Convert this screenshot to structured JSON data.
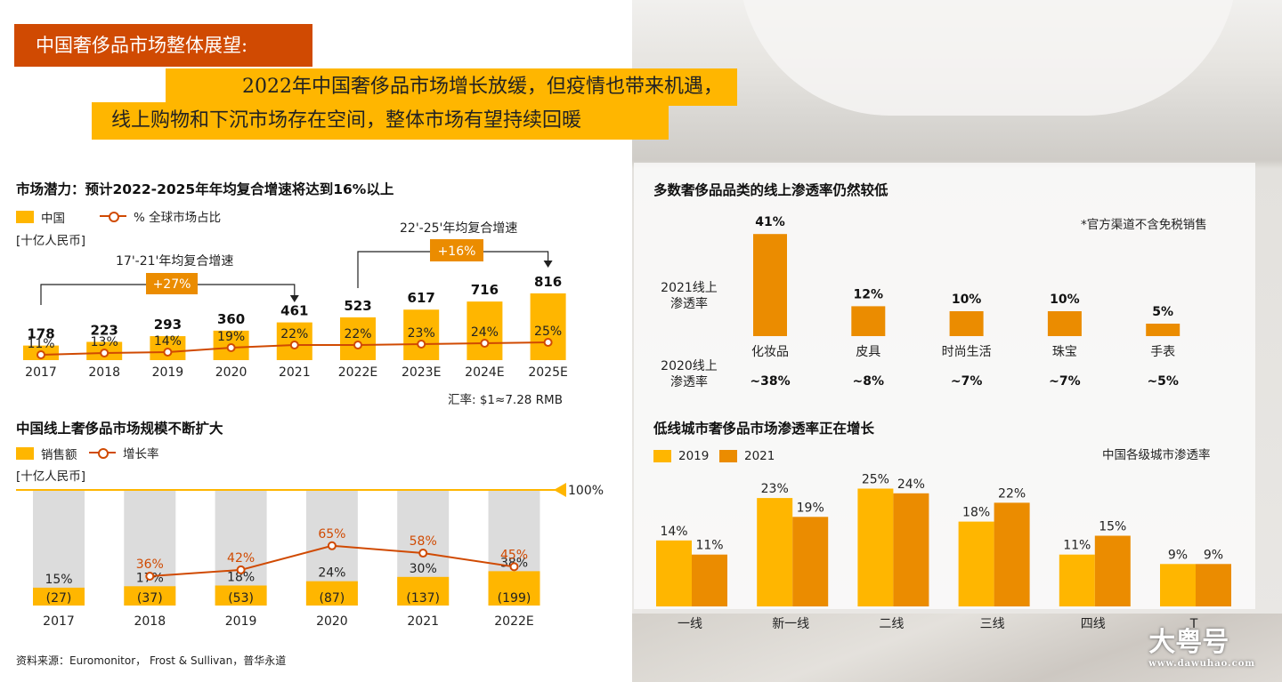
{
  "header": {
    "tag": "中国奢侈品市场整体展望:",
    "headline_line1": "2022年中国奢侈品市场增长放缓，但疫情也带来机遇，",
    "headline_line2": "线上购物和下沉市场存在空间，整体市场有望持续回暖"
  },
  "colors": {
    "orange": "#d04a02",
    "yellow": "#ffb600",
    "amber": "#eb8c00",
    "grey": "#dcdcdc"
  },
  "chart1": {
    "title": "市场潜力：预计2022-2025年年均复合增速将达到16%以上",
    "legend_bar": "中国",
    "legend_line": "% 全球市场占比",
    "unit": "[十亿人民币]",
    "cagr1_label": "17'-21'年均复合增速",
    "cagr1_value": "+27%",
    "cagr2_label": "22'-25'年均复合增速",
    "cagr2_value": "+16%",
    "fx_note": "汇率: $1≈7.28 RMB"
  },
  "chart2": {
    "title": "中国线上奢侈品市场规模不断扩大",
    "legend_bar": "销售额",
    "legend_line": "增长率",
    "unit": "[十亿人民币]",
    "ref_label": "100%"
  },
  "chart3": {
    "title": "多数奢侈品品类的线上渗透率仍然较低",
    "note": "*官方渠道不含免税销售",
    "row_label_2021": "2021线上\n渗透率",
    "row_label_2020": "2020线上\n渗透率"
  },
  "chart4": {
    "title": "低线城市奢侈品市场渗透率正在增长",
    "legend_a": "2019",
    "legend_b": "2021",
    "note": "中国各级城市渗透率"
  },
  "footer": {
    "source": "资料来源：Euromonitor， Frost & Sullivan，普华永道"
  },
  "watermark": {
    "main": "大粤号",
    "sub": "www.dawuhao.com"
  },
  "chart_data": [
    {
      "type": "bar",
      "title": "市场潜力：预计2022-2025年年均复合增速将达到16%以上",
      "categories": [
        "2017",
        "2018",
        "2019",
        "2020",
        "2021",
        "2022E",
        "2023E",
        "2024E",
        "2025E"
      ],
      "series": [
        {
          "name": "中国",
          "values": [
            178,
            223,
            293,
            360,
            461,
            523,
            617,
            716,
            816
          ]
        },
        {
          "name": "% 全球市场占比",
          "type": "line",
          "values": [
            11,
            13,
            14,
            19,
            22,
            22,
            23,
            24,
            25
          ]
        }
      ]
    },
    {
      "type": "bar",
      "title": "中国线上奢侈品市场规模不断扩大",
      "categories": [
        "2017",
        "2018",
        "2019",
        "2020",
        "2021",
        "2022E"
      ],
      "series": [
        {
          "name": "销售额",
          "values": [
            27,
            37,
            53,
            87,
            137,
            199
          ]
        },
        {
          "name": "share_pct",
          "values": [
            15,
            17,
            18,
            24,
            30,
            38
          ]
        },
        {
          "name": "增长率",
          "type": "line",
          "values": [
            null,
            36,
            42,
            65,
            58,
            45
          ]
        }
      ]
    },
    {
      "type": "bar",
      "title": "多数奢侈品品类的线上渗透率仍然较低",
      "categories": [
        "化妆品",
        "皮具",
        "时尚生活",
        "珠宝",
        "手表"
      ],
      "series": [
        {
          "name": "2021线上渗透率",
          "values": [
            41,
            12,
            10,
            10,
            5
          ]
        },
        {
          "name": "2020线上渗透率",
          "values": [
            "~38%",
            "~8%",
            "~7%",
            "~7%",
            "~5%"
          ]
        }
      ]
    },
    {
      "type": "bar",
      "title": "低线城市奢侈品市场渗透率正在增长",
      "categories": [
        "一线",
        "新一线",
        "二线",
        "三线",
        "四线",
        "T"
      ],
      "series": [
        {
          "name": "2019",
          "values": [
            14,
            23,
            25,
            18,
            11,
            9
          ]
        },
        {
          "name": "2021",
          "values": [
            11,
            19,
            24,
            22,
            15,
            9
          ]
        }
      ]
    }
  ]
}
